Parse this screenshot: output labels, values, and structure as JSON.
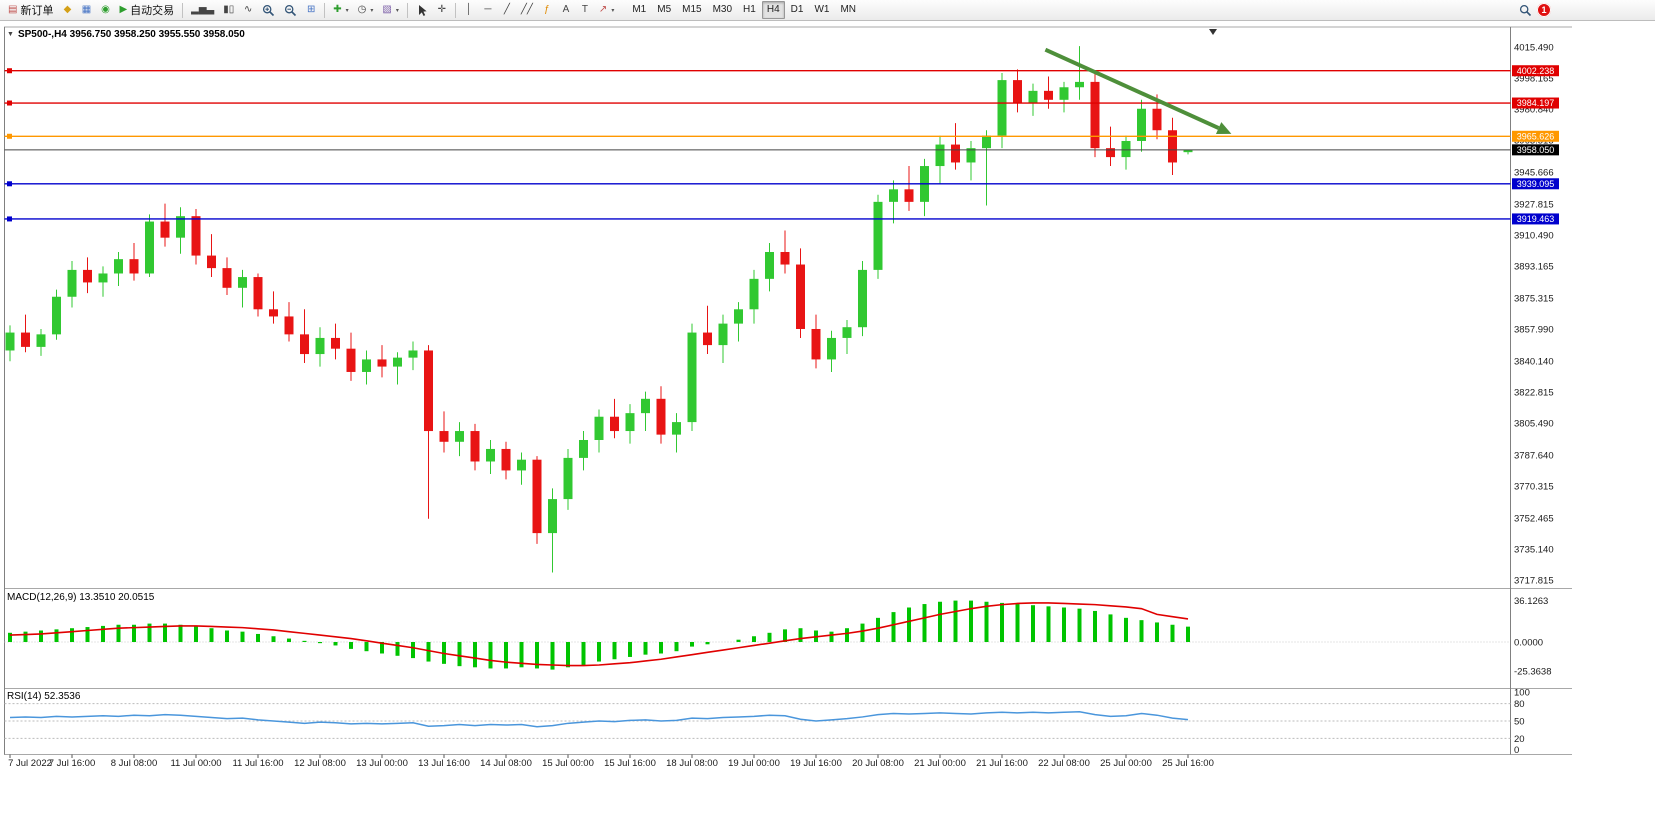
{
  "app": {
    "toolbar": {
      "new_order": "新订单",
      "autotrade": "自动交易",
      "timeframes": [
        "M1",
        "M5",
        "M15",
        "M30",
        "H1",
        "H4",
        "D1",
        "W1",
        "MN"
      ],
      "active_timeframe": "H4",
      "notification_count": "1"
    },
    "icons": {
      "symbol_caret": "▼",
      "caret": "▾",
      "new_order": "▤",
      "metaeditor": "◆",
      "new_chart": "▦",
      "profiles": "◉",
      "autotrade_play": "▶",
      "bar_chart": "▂▅▃",
      "candle_chart": "▮▯",
      "line_chart": "∿",
      "tile_windows": "⊞",
      "add_indicator": "✚",
      "periods": "◷",
      "templates": "▧",
      "crosshair": "✛",
      "vline": "│",
      "hline": "─",
      "trendline": "╱",
      "channel": "╱╱",
      "fibonacci": "ƒ",
      "text_tool": "A",
      "label_tool": "T",
      "arrow_tool": "↗"
    }
  },
  "chart": {
    "symbol_title": "SP500-,H4 3956.750 3958.250 3955.550 3958.050",
    "macd_label": "MACD(12,26,9) 13.3510 20.0515",
    "rsi_label": "RSI(14) 52.3536"
  },
  "colors": {
    "candle_up": "#31c831",
    "candle_down": "#e81414",
    "macd_hist": "#00c400",
    "macd_signal": "#e00000",
    "rsi_line": "#4a96dc",
    "line_red": "#e00000",
    "line_orange": "#ff9800",
    "line_blue": "#0000cd",
    "price_badge_black": "#000000",
    "arrow_green": "#4e8f3a"
  },
  "chart_data": {
    "type": "candlestick",
    "symbol": "SP500-",
    "timeframe": "H4",
    "current_bar": {
      "open": 3956.75,
      "high": 3958.25,
      "low": 3955.55,
      "close": 3958.05
    },
    "ohlc": [
      [
        3846,
        3860,
        3840,
        3856
      ],
      [
        3856,
        3866,
        3845,
        3848
      ],
      [
        3848,
        3858,
        3843,
        3855
      ],
      [
        3855,
        3880,
        3852,
        3876
      ],
      [
        3876,
        3896,
        3870,
        3891
      ],
      [
        3891,
        3898,
        3878,
        3884
      ],
      [
        3884,
        3893,
        3876,
        3889
      ],
      [
        3889,
        3901,
        3882,
        3897
      ],
      [
        3897,
        3906,
        3885,
        3889
      ],
      [
        3889,
        3922,
        3887,
        3918
      ],
      [
        3918,
        3928,
        3904,
        3909
      ],
      [
        3909,
        3926,
        3900,
        3921
      ],
      [
        3921,
        3925,
        3894,
        3899
      ],
      [
        3899,
        3911,
        3887,
        3892
      ],
      [
        3892,
        3898,
        3877,
        3881
      ],
      [
        3881,
        3891,
        3870,
        3887
      ],
      [
        3887,
        3889,
        3865,
        3869
      ],
      [
        3869,
        3879,
        3861,
        3865
      ],
      [
        3865,
        3873,
        3851,
        3855
      ],
      [
        3855,
        3869,
        3839,
        3844
      ],
      [
        3844,
        3859,
        3837,
        3853
      ],
      [
        3853,
        3861,
        3841,
        3847
      ],
      [
        3847,
        3856,
        3829,
        3834
      ],
      [
        3834,
        3846,
        3827,
        3841
      ],
      [
        3841,
        3849,
        3831,
        3837
      ],
      [
        3837,
        3845,
        3827,
        3842
      ],
      [
        3842,
        3851,
        3835,
        3846
      ],
      [
        3846,
        3849,
        3752,
        3801
      ],
      [
        3801,
        3812,
        3789,
        3795
      ],
      [
        3795,
        3806,
        3787,
        3801
      ],
      [
        3801,
        3805,
        3779,
        3784
      ],
      [
        3784,
        3796,
        3777,
        3791
      ],
      [
        3791,
        3795,
        3774,
        3779
      ],
      [
        3779,
        3789,
        3771,
        3785
      ],
      [
        3785,
        3787,
        3738,
        3744
      ],
      [
        3744,
        3769,
        3722,
        3763
      ],
      [
        3763,
        3791,
        3757,
        3786
      ],
      [
        3786,
        3801,
        3779,
        3796
      ],
      [
        3796,
        3813,
        3789,
        3809
      ],
      [
        3809,
        3819,
        3797,
        3801
      ],
      [
        3801,
        3816,
        3794,
        3811
      ],
      [
        3811,
        3823,
        3801,
        3819
      ],
      [
        3819,
        3826,
        3794,
        3799
      ],
      [
        3799,
        3811,
        3789,
        3806
      ],
      [
        3806,
        3861,
        3801,
        3856
      ],
      [
        3856,
        3871,
        3844,
        3849
      ],
      [
        3849,
        3866,
        3839,
        3861
      ],
      [
        3861,
        3873,
        3851,
        3869
      ],
      [
        3869,
        3891,
        3861,
        3886
      ],
      [
        3886,
        3906,
        3879,
        3901
      ],
      [
        3901,
        3913,
        3889,
        3894
      ],
      [
        3894,
        3903,
        3853,
        3858
      ],
      [
        3858,
        3866,
        3836,
        3841
      ],
      [
        3841,
        3857,
        3834,
        3853
      ],
      [
        3853,
        3863,
        3844,
        3859
      ],
      [
        3859,
        3896,
        3854,
        3891
      ],
      [
        3891,
        3933,
        3886,
        3929
      ],
      [
        3929,
        3941,
        3917,
        3936
      ],
      [
        3936,
        3949,
        3924,
        3929
      ],
      [
        3929,
        3953,
        3921,
        3949
      ],
      [
        3949,
        3966,
        3939,
        3961
      ],
      [
        3961,
        3973,
        3947,
        3951
      ],
      [
        3951,
        3963,
        3941,
        3959
      ],
      [
        3959,
        3969,
        3927,
        3966
      ],
      [
        3966,
        4001,
        3959,
        3997
      ],
      [
        3997,
        4003,
        3979,
        3984
      ],
      [
        3984,
        3995,
        3977,
        3991
      ],
      [
        3991,
        3999,
        3981,
        3986
      ],
      [
        3986,
        3996,
        3979,
        3993
      ],
      [
        3993,
        4016,
        3986,
        3996
      ],
      [
        3996,
        4001,
        3954,
        3959
      ],
      [
        3959,
        3971,
        3949,
        3954
      ],
      [
        3954,
        3966,
        3947,
        3963
      ],
      [
        3963,
        3986,
        3957,
        3981
      ],
      [
        3981,
        3989,
        3964,
        3969
      ],
      [
        3969,
        3976,
        3944,
        3951
      ],
      [
        3956.75,
        3958.25,
        3955.55,
        3958.05
      ]
    ],
    "time_labels": [
      "7 Jul 2022",
      "7 Jul 16:00",
      "8 Jul 08:00",
      "11 Jul 00:00",
      "11 Jul 16:00",
      "12 Jul 08:00",
      "13 Jul 00:00",
      "13 Jul 16:00",
      "14 Jul 08:00",
      "15 Jul 00:00",
      "15 Jul 16:00",
      "18 Jul 08:00",
      "19 Jul 00:00",
      "19 Jul 16:00",
      "20 Jul 08:00",
      "21 Jul 00:00",
      "21 Jul 16:00",
      "22 Jul 08:00",
      "25 Jul 00:00",
      "25 Jul 16:00"
    ],
    "label_every_n_bars": 4,
    "price_axis_ticks": [
      "4015.490",
      "3998.165",
      "3980.840",
      "3963.515",
      "3945.666",
      "3927.815",
      "3910.490",
      "3893.165",
      "3875.315",
      "3857.990",
      "3840.140",
      "3822.815",
      "3805.490",
      "3787.640",
      "3770.315",
      "3752.465",
      "3735.140",
      "3717.815"
    ],
    "price_axis_range": [
      3717.815,
      4015.49
    ],
    "hlines": [
      {
        "price": 4002.238,
        "label": "4002.238",
        "color": "#e00000"
      },
      {
        "price": 3984.197,
        "label": "3984.197",
        "color": "#e00000"
      },
      {
        "price": 3965.626,
        "label": "3965.626",
        "color": "#ff9800"
      },
      {
        "price": 3939.095,
        "label": "3939.095",
        "color": "#0000cd"
      },
      {
        "price": 3919.463,
        "label": "3919.463",
        "color": "#0000cd"
      }
    ],
    "current_price": {
      "price": 3958.05,
      "label": "3958.050",
      "color": "#000000"
    },
    "macd": {
      "hist": [
        8,
        9,
        10,
        11,
        12,
        13,
        14,
        15,
        15,
        16,
        16,
        15,
        14,
        12,
        10,
        9,
        7,
        5,
        3,
        1,
        -1,
        -3,
        -6,
        -8,
        -10,
        -12,
        -14,
        -17,
        -19,
        -21,
        -22,
        -23,
        -23,
        -22,
        -23,
        -24,
        -22,
        -20,
        -17,
        -15,
        -13,
        -11,
        -10,
        -8,
        -4,
        -2,
        0,
        2,
        5,
        8,
        11,
        12,
        10,
        9,
        12,
        16,
        21,
        26,
        30,
        33,
        35,
        36,
        36,
        35,
        34,
        33,
        32,
        31,
        30,
        29,
        27,
        24,
        21,
        19,
        17,
        15,
        13.35
      ],
      "signal": [
        6,
        6.5,
        7,
        8,
        9,
        10,
        11,
        12,
        12.5,
        13,
        13.5,
        14,
        14,
        13.5,
        13,
        12.5,
        11.5,
        10.5,
        9,
        7.5,
        6,
        4.5,
        3,
        1,
        -1,
        -3,
        -5,
        -7.5,
        -10,
        -12,
        -14,
        -16,
        -17.5,
        -18.5,
        -19.5,
        -20,
        -20.5,
        -20.5,
        -20,
        -19,
        -18,
        -16.5,
        -15,
        -13,
        -11,
        -9,
        -7,
        -5,
        -3,
        -1,
        1,
        3,
        4.5,
        6,
        7.5,
        9.5,
        12,
        15,
        18,
        21,
        24,
        26.5,
        29,
        31,
        32.5,
        33.5,
        34,
        34,
        33.5,
        33,
        32.5,
        31.5,
        30.5,
        29,
        24,
        22,
        20.05
      ],
      "axis_ticks": [
        "36.1263",
        "0.0000",
        "-25.3638"
      ],
      "axis_values": [
        36.1263,
        0,
        -25.3638
      ]
    },
    "rsi": {
      "values": [
        56,
        57,
        56,
        58,
        57,
        58,
        59,
        58,
        60,
        59,
        61,
        60,
        58,
        56,
        54,
        55,
        52,
        50,
        48,
        46,
        48,
        47,
        45,
        46,
        45,
        46,
        47,
        41,
        42,
        44,
        42,
        44,
        43,
        44,
        40,
        42,
        46,
        48,
        50,
        49,
        51,
        52,
        50,
        51,
        55,
        54,
        56,
        57,
        58,
        60,
        59,
        53,
        50,
        52,
        54,
        57,
        61,
        63,
        62,
        63,
        64,
        63,
        62,
        64,
        65,
        64,
        65,
        64,
        65,
        66,
        61,
        58,
        59,
        63,
        60,
        55,
        52.35
      ],
      "levels": [
        80,
        50,
        20
      ],
      "axis_ticks": [
        "100",
        "80",
        "50",
        "20",
        "0"
      ],
      "axis_values": [
        100,
        80,
        50,
        20,
        0
      ]
    },
    "annotations": [
      {
        "type": "arrow",
        "from_bar": 66.8,
        "from_price": 4014,
        "to_bar": 78.8,
        "to_price": 3967,
        "color": "#4e8f3a"
      }
    ]
  }
}
